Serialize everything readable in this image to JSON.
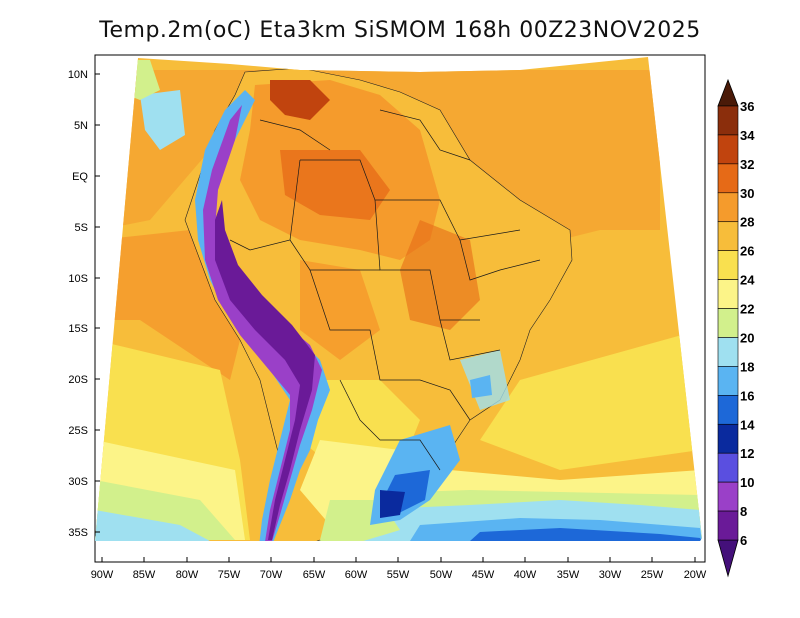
{
  "title": "Temp.2m(oC) Eta3km SiSMOM 168h 00Z23NOV2025",
  "lat_labels": [
    "10N",
    "5N",
    "EQ",
    "5S",
    "10S",
    "15S",
    "20S",
    "25S",
    "30S",
    "35S"
  ],
  "lon_labels": [
    "90W",
    "85W",
    "80W",
    "75W",
    "70W",
    "65W",
    "60W",
    "55W",
    "50W",
    "45W",
    "40W",
    "35W",
    "30W",
    "25W",
    "20W"
  ],
  "colorbar": {
    "labels": [
      "36",
      "34",
      "32",
      "30",
      "28",
      "26",
      "24",
      "22",
      "20",
      "18",
      "16",
      "14",
      "12",
      "10",
      "8",
      "6"
    ],
    "colors": [
      "#4a1a08",
      "#8b2e0c",
      "#c1440e",
      "#e66a17",
      "#f59b2c",
      "#f7bd3a",
      "#f9e04f",
      "#fcf488",
      "#d2f08c",
      "#9fe0f0",
      "#5ab4f2",
      "#1d68d8",
      "#0a2a9e",
      "#5a4fe0",
      "#9a40c8",
      "#6a1a98",
      "#44107a"
    ]
  },
  "map": {
    "type": "temperature field",
    "region": "South America",
    "lon_range": [
      -90,
      -20
    ],
    "lat_range": [
      -37,
      12
    ],
    "unit": "oC"
  }
}
